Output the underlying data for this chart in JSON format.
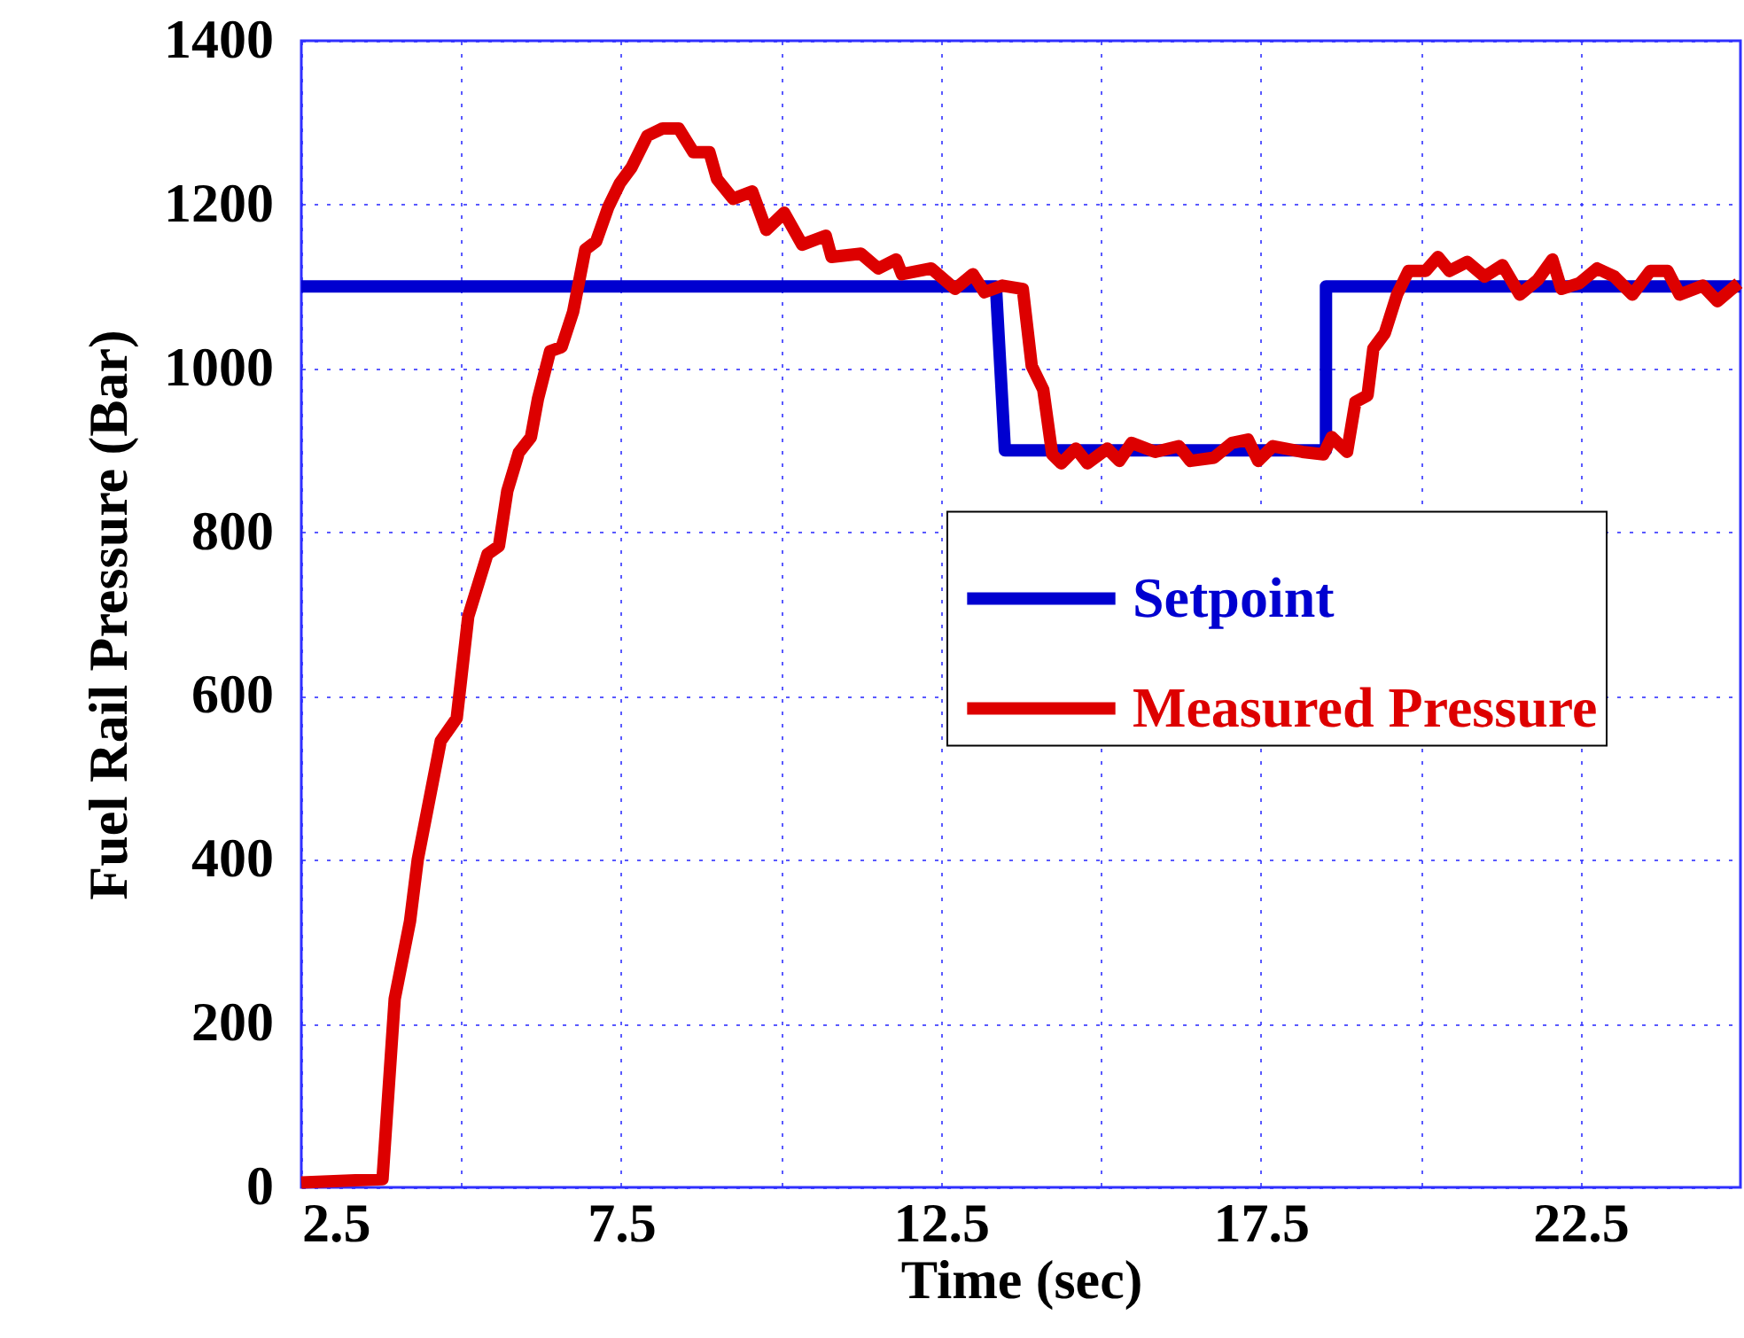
{
  "chart_data": {
    "type": "line",
    "xlabel": "Time (sec)",
    "ylabel": "Fuel Rail Pressure (Bar)",
    "xlim": [
      2.5,
      25
    ],
    "xticks": [
      2.5,
      {
        "value": 5,
        "label": null
      },
      7.5,
      {
        "value": 10,
        "label": null
      },
      12.5,
      {
        "value": 15,
        "label": null
      },
      17.5,
      {
        "value": 20,
        "label": null
      },
      22.5
    ],
    "ylim": [
      0,
      1400
    ],
    "yticks": [
      0,
      200,
      400,
      600,
      800,
      1000,
      1200,
      1400
    ],
    "grid": true,
    "legend": "right",
    "line_style": "solid",
    "series": [
      {
        "name": "Setpoint",
        "color": "#0000d0",
        "x": [
          2.5,
          13.36,
          13.5,
          18.52,
          18.52,
          25
        ],
        "values": [
          1100,
          1100,
          900,
          900,
          1100,
          1100
        ]
      },
      {
        "name": "Measured Pressure",
        "color": "#dd0000",
        "x": [
          2.5,
          3.77,
          3.96,
          4.2,
          4.32,
          4.68,
          4.93,
          5.11,
          5.41,
          5.59,
          5.72,
          5.9,
          6.09,
          6.2,
          6.39,
          6.57,
          6.75,
          6.94,
          7.11,
          7.3,
          7.48,
          7.66,
          7.91,
          8.15,
          8.4,
          8.63,
          8.88,
          9.0,
          9.25,
          9.55,
          9.77,
          10.05,
          10.33,
          10.7,
          10.79,
          11.25,
          11.52,
          11.8,
          11.89,
          12.35,
          12.72,
          13.0,
          13.18,
          13.46,
          13.78,
          13.92,
          14.1,
          14.24,
          14.38,
          14.61,
          14.79,
          15.1,
          15.29,
          15.48,
          15.85,
          16.22,
          16.4,
          16.77,
          17.05,
          17.3,
          17.46,
          17.69,
          18.15,
          18.48,
          18.61,
          18.85,
          18.98,
          19.17,
          19.26,
          19.44,
          19.63,
          19.81,
          20.08,
          20.27,
          20.45,
          20.73,
          21.0,
          21.28,
          21.55,
          21.83,
          22.06,
          22.2,
          22.48,
          22.76,
          23.03,
          23.31,
          23.59,
          23.86,
          24.05,
          24.41,
          24.64,
          24.97
        ],
        "values": [
          6,
          10,
          230,
          325,
          400,
          545,
          573,
          697,
          773,
          783,
          850,
          897,
          916,
          963,
          1021,
          1026,
          1069,
          1145,
          1155,
          1197,
          1226,
          1245,
          1284,
          1293,
          1293,
          1264,
          1264,
          1231,
          1207,
          1216,
          1169,
          1190,
          1151,
          1162,
          1136,
          1140,
          1122,
          1133,
          1115,
          1122,
          1097,
          1115,
          1093,
          1101,
          1097,
          1003,
          974,
          895,
          884,
          902,
          884,
          902,
          887,
          909,
          898,
          905,
          887,
          891,
          909,
          913,
          887,
          905,
          898,
          895,
          916,
          898,
          959,
          967,
          1024,
          1043,
          1090,
          1119,
          1119,
          1136,
          1119,
          1130,
          1112,
          1126,
          1090,
          1108,
          1133,
          1097,
          1104,
          1122,
          1112,
          1090,
          1119,
          1119,
          1090,
          1101,
          1082,
          1104
        ]
      }
    ]
  }
}
